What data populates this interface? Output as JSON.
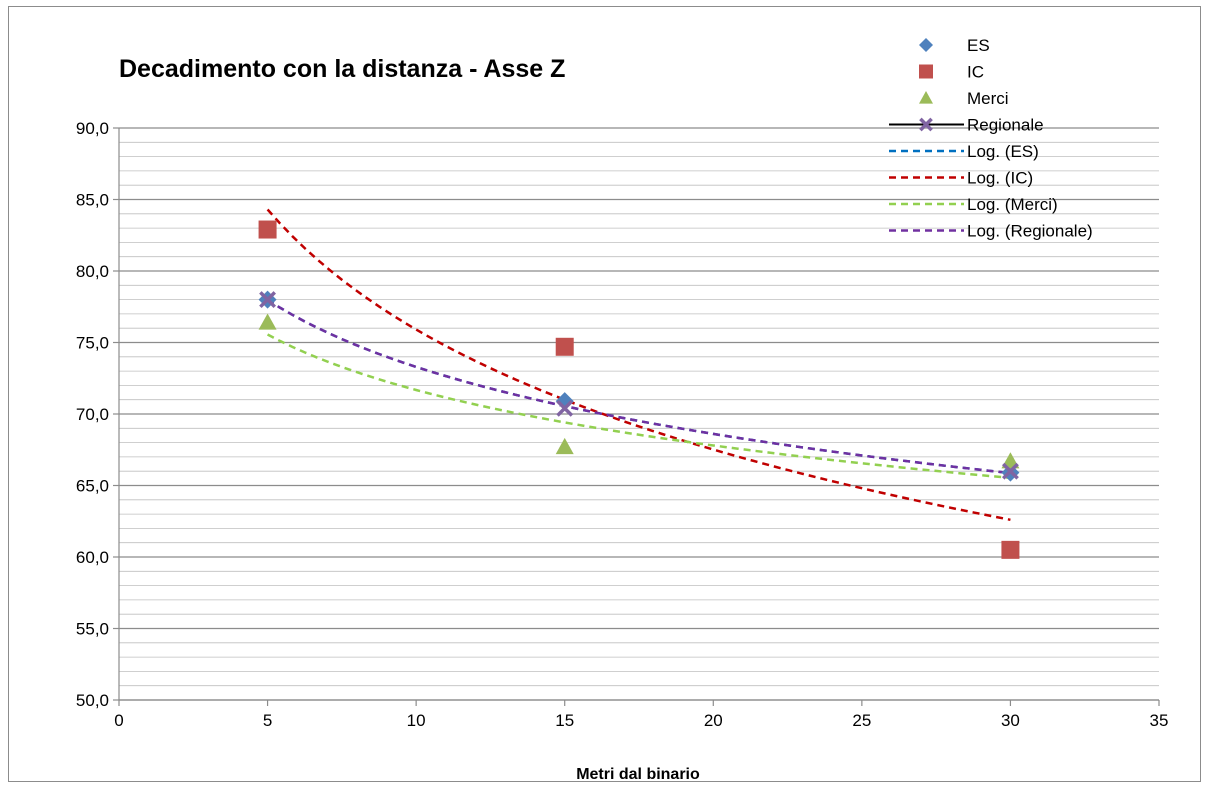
{
  "chart_data": {
    "type": "scatter",
    "title": "Decadimento con la distanza - Asse Z",
    "xlabel": "Metri dal binario",
    "ylabel": "",
    "xlim": [
      0,
      35
    ],
    "ylim": [
      50,
      90
    ],
    "x_ticks": [
      0,
      5,
      10,
      15,
      20,
      25,
      30,
      35
    ],
    "x_tick_labels": [
      "0",
      "5",
      "10",
      "15",
      "20",
      "25",
      "30",
      "35"
    ],
    "y_ticks": [
      50,
      55,
      60,
      65,
      70,
      75,
      80,
      85,
      90
    ],
    "y_tick_labels": [
      "50,0",
      "55,0",
      "60,0",
      "65,0",
      "70,0",
      "75,0",
      "80,0",
      "85,0",
      "90,0"
    ],
    "grid": "horizontal major and minor",
    "legend_position": "top-right",
    "series": [
      {
        "name": "ES",
        "marker": "diamond",
        "color": "#4f81bd",
        "x": [
          5,
          15,
          30
        ],
        "y": [
          78.0,
          70.9,
          65.9
        ]
      },
      {
        "name": "IC",
        "marker": "square",
        "color": "#c0504d",
        "x": [
          5,
          15,
          30
        ],
        "y": [
          82.9,
          74.7,
          60.5
        ]
      },
      {
        "name": "Merci",
        "marker": "triangle",
        "color": "#9bbb59",
        "x": [
          5,
          15,
          30
        ],
        "y": [
          76.4,
          67.7,
          66.7
        ]
      },
      {
        "name": "Regionale",
        "marker": "x",
        "color": "#8064a2",
        "line_color": "#000000",
        "x": [
          5,
          15,
          30
        ],
        "y": [
          78.0,
          70.4,
          66.0
        ]
      }
    ],
    "trendlines": [
      {
        "name": "Log. (ES)",
        "color": "#0070c0",
        "x_range": [
          5,
          30
        ],
        "points": [
          [
            5,
            78.0
          ],
          [
            15,
            70.5
          ],
          [
            30,
            65.9
          ]
        ]
      },
      {
        "name": "Log. (IC)",
        "color": "#c00000",
        "x_range": [
          5,
          30
        ],
        "points": [
          [
            5,
            84.3
          ],
          [
            15,
            71.0
          ],
          [
            30,
            62.6
          ]
        ]
      },
      {
        "name": "Log. (Merci)",
        "color": "#92d050",
        "x_range": [
          5,
          30
        ],
        "points": [
          [
            5,
            75.6
          ],
          [
            15,
            69.3
          ],
          [
            30,
            65.6
          ]
        ]
      },
      {
        "name": "Log. (Regionale)",
        "color": "#7030a0",
        "x_range": [
          5,
          30
        ],
        "points": [
          [
            5,
            78.0
          ],
          [
            15,
            70.5
          ],
          [
            30,
            65.9
          ]
        ]
      }
    ]
  }
}
